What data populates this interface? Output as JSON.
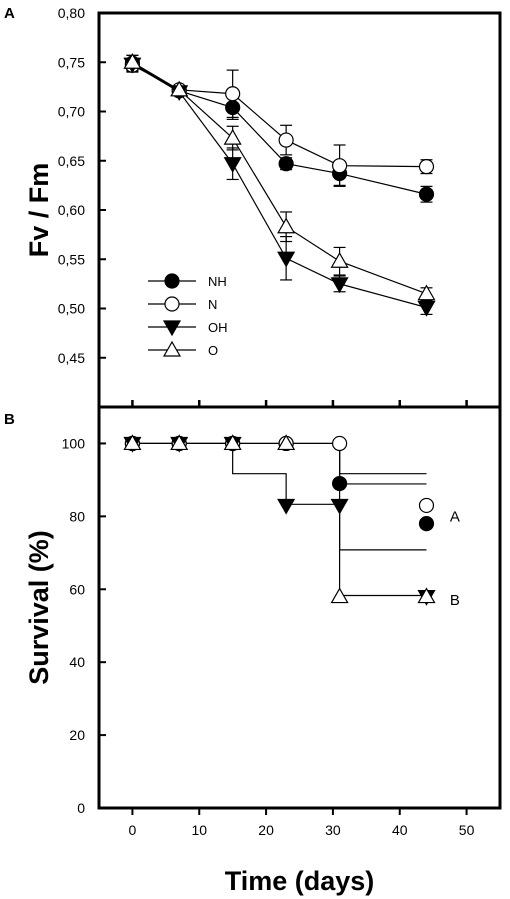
{
  "chart_data": [
    {
      "panel_label": "A",
      "type": "line",
      "title": "",
      "ylabel": "Fv / Fm",
      "ylim": [
        0.4,
        0.8
      ],
      "yticks": [
        "0,45",
        "0,50",
        "0,55",
        "0,60",
        "0,65",
        "0,70",
        "0,75",
        "0,80"
      ],
      "xlim": [
        -5,
        55
      ],
      "legend_position": "bottom-left",
      "series": [
        {
          "name": "NH",
          "marker": "filled-circle",
          "x": [
            0,
            7,
            15,
            23,
            31,
            44
          ],
          "y": [
            0.749,
            0.721,
            0.704,
            0.647,
            0.637,
            0.616
          ],
          "err": [
            0.008,
            0.004,
            0.012,
            0.006,
            0.012,
            0.008
          ]
        },
        {
          "name": "N",
          "marker": "open-circle",
          "x": [
            0,
            7,
            15,
            23,
            31,
            44
          ],
          "y": [
            0.747,
            0.722,
            0.718,
            0.671,
            0.645,
            0.644
          ],
          "err": [
            0.007,
            0.004,
            0.024,
            0.015,
            0.021,
            0.007
          ]
        },
        {
          "name": "OH",
          "marker": "filled-triangle-down",
          "x": [
            0,
            7,
            15,
            23,
            31,
            44
          ],
          "y": [
            0.748,
            0.72,
            0.647,
            0.551,
            0.525,
            0.501
          ],
          "err": [
            0.006,
            0.004,
            0.016,
            0.022,
            0.008,
            0.007
          ]
        },
        {
          "name": "O",
          "marker": "open-triangle-up",
          "x": [
            0,
            7,
            15,
            23,
            31,
            44
          ],
          "y": [
            0.75,
            0.722,
            0.673,
            0.583,
            0.548,
            0.515
          ],
          "err": [
            0.007,
            0.004,
            0.012,
            0.015,
            0.014,
            0.006
          ]
        }
      ]
    },
    {
      "panel_label": "B",
      "type": "line",
      "title": "",
      "ylabel": "Survival (%)",
      "xlabel": "Time (days)",
      "ylim": [
        0,
        110
      ],
      "yticks": [
        "0",
        "20",
        "40",
        "60",
        "80",
        "100"
      ],
      "xlim": [
        -5,
        55
      ],
      "xticks": [
        "0",
        "10",
        "20",
        "30",
        "40",
        "50"
      ],
      "series": [
        {
          "name": "NH",
          "marker": "filled-circle",
          "x": [
            0,
            7,
            15,
            23,
            31,
            44
          ],
          "y": [
            100,
            100,
            100,
            100,
            89,
            78
          ]
        },
        {
          "name": "N",
          "marker": "open-circle",
          "x": [
            0,
            7,
            15,
            23,
            31,
            44
          ],
          "y": [
            100,
            100,
            100,
            100,
            100,
            83
          ]
        },
        {
          "name": "OH",
          "marker": "filled-triangle-down",
          "x": [
            0,
            7,
            15,
            23,
            31,
            44
          ],
          "y": [
            100,
            100,
            100,
            83,
            83,
            58
          ]
        },
        {
          "name": "O",
          "marker": "open-triangle-up",
          "x": [
            0,
            7,
            15,
            23,
            31,
            44
          ],
          "y": [
            100,
            100,
            100,
            100,
            58,
            58
          ]
        }
      ],
      "steps": [
        {
          "y": [
            100,
            100,
            100,
            100,
            91.7,
            91.7
          ]
        },
        {
          "y": [
            100,
            100,
            100,
            100,
            88.9,
            88.9
          ]
        },
        {
          "y": [
            100,
            100,
            91.7,
            83.3,
            70.8,
            70.8
          ]
        },
        {
          "y": [
            100,
            100,
            100,
            100,
            58.3,
            58.3
          ]
        }
      ],
      "annotations": [
        {
          "text": "A",
          "x": 47.5,
          "y": 80
        },
        {
          "text": "B",
          "x": 47.5,
          "y": 57
        }
      ]
    }
  ]
}
